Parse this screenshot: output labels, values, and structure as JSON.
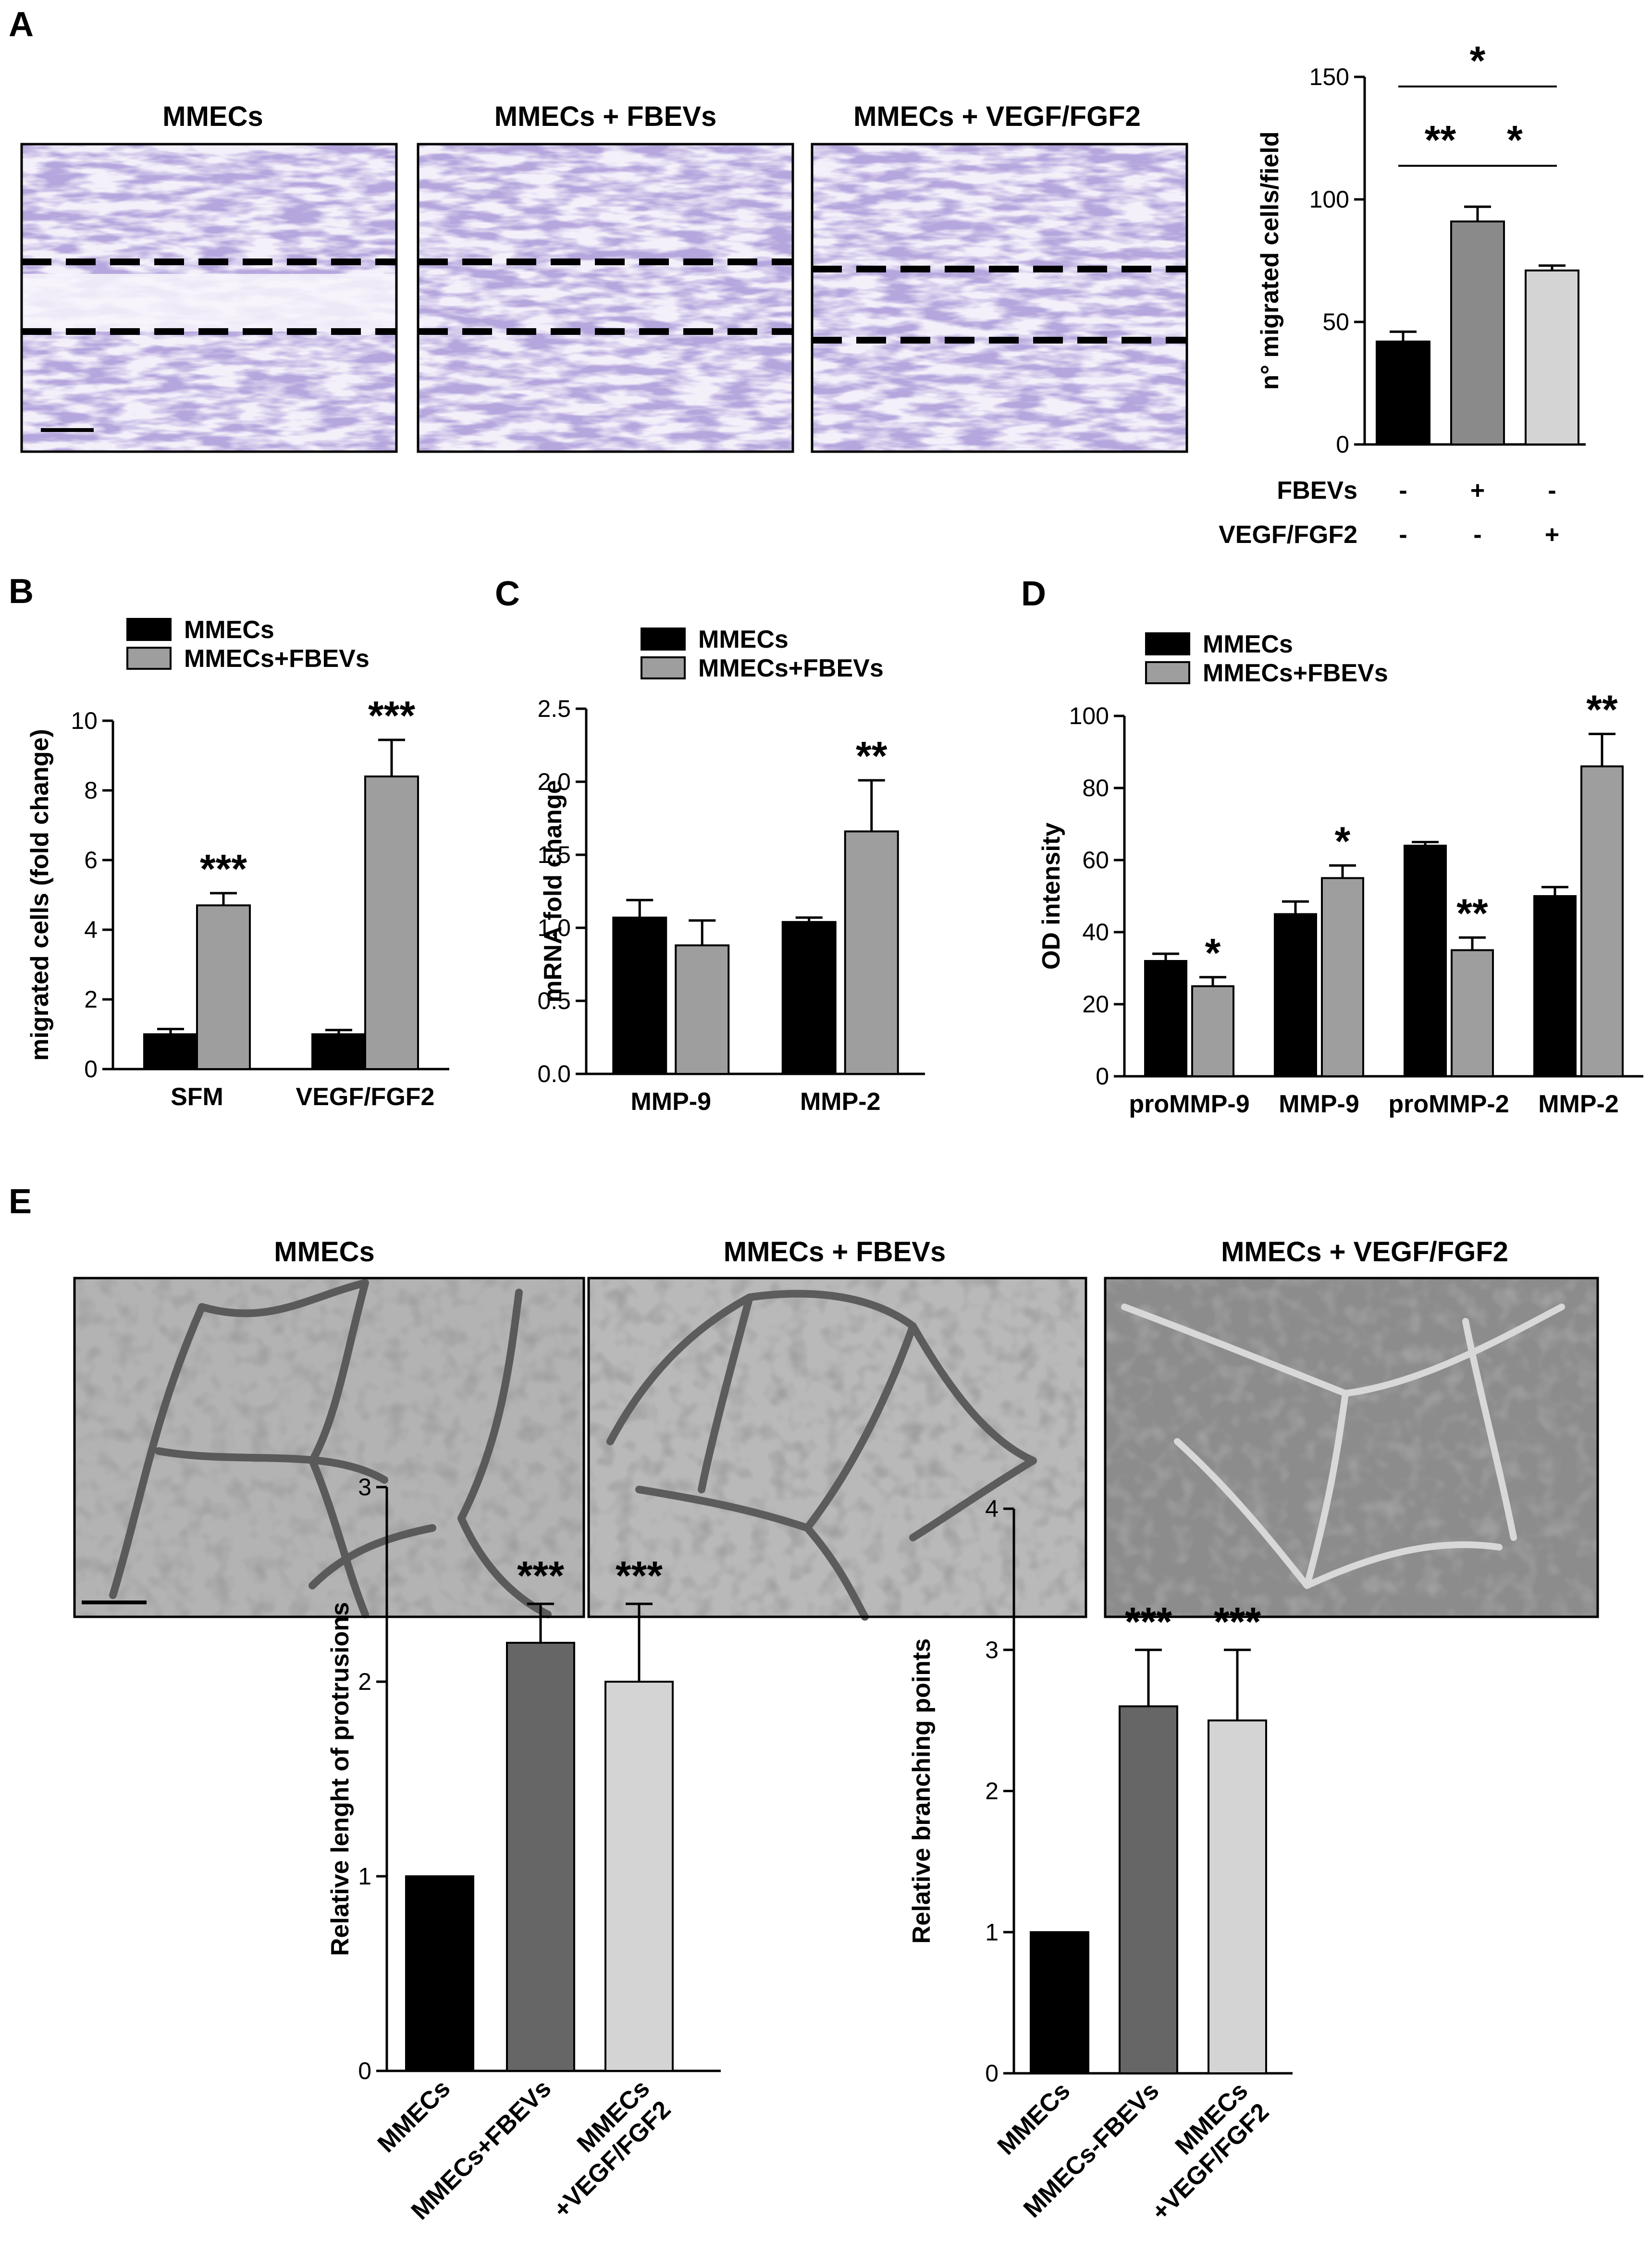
{
  "panels": {
    "A": "A",
    "B": "B",
    "C": "C",
    "D": "D",
    "E": "E"
  },
  "panel_a": {
    "image_titles": [
      "MMECs",
      "MMECs + FBEVs",
      "MMECs + VEGF/FGF2"
    ],
    "row_labels": [
      "FBEVs",
      "VEGF/FGF2"
    ],
    "row_values": [
      [
        "-",
        "+",
        "-"
      ],
      [
        "-",
        "-",
        "+"
      ]
    ]
  },
  "panel_e": {
    "image_titles": [
      "MMECs",
      "MMECs + FBEVs",
      "MMECs + VEGF/FGF2"
    ]
  },
  "colors": {
    "black": "#000000",
    "dark_gray": "#666666",
    "mid_gray": "#8a8a8a",
    "gray": "#9e9e9e",
    "light_gray": "#d4d4d4",
    "stain": "#8b7bbf",
    "phase": "#a6a6a6"
  },
  "chart_data": [
    {
      "id": "A",
      "type": "bar",
      "ylabel": "n° migrated cells/field",
      "ylim": [
        0,
        150
      ],
      "yticks": [
        0,
        50,
        100,
        150
      ],
      "categories": [
        "",
        "",
        ""
      ],
      "values": [
        42,
        91,
        71
      ],
      "errors": [
        4,
        6,
        2
      ],
      "bar_colors": [
        "#000000",
        "#8a8a8a",
        "#d4d4d4"
      ],
      "significance": [
        {
          "from": 0,
          "to": 2,
          "label": "*"
        },
        {
          "from": 0,
          "to": 1,
          "label": "**"
        },
        {
          "from": 1,
          "to": 2,
          "label": "*"
        }
      ]
    },
    {
      "id": "B",
      "type": "bar",
      "ylabel": "migrated cells (fold change)",
      "ylim": [
        0,
        10
      ],
      "yticks": [
        0,
        2,
        4,
        6,
        8,
        10
      ],
      "categories": [
        "SFM",
        "VEGF/FGF2"
      ],
      "series": [
        {
          "name": "MMECs",
          "color": "#000000",
          "values": [
            1.0,
            1.0
          ],
          "errors": [
            0.15,
            0.12
          ],
          "stars": [
            "",
            ""
          ]
        },
        {
          "name": "MMECs+FBEVs",
          "color": "#9e9e9e",
          "values": [
            4.7,
            8.4
          ],
          "errors": [
            0.35,
            1.05
          ],
          "stars": [
            "***",
            "***"
          ]
        }
      ]
    },
    {
      "id": "C",
      "type": "bar",
      "ylabel": "mRNA fold change",
      "ylim": [
        0,
        2.5
      ],
      "yticks": [
        "0.0",
        "0.5",
        "1.0",
        "1.5",
        "2.0",
        "2.5"
      ],
      "categories": [
        "MMP-9",
        "MMP-2"
      ],
      "series": [
        {
          "name": "MMECs",
          "color": "#000000",
          "values": [
            1.07,
            1.04
          ],
          "errors": [
            0.12,
            0.03
          ],
          "stars": [
            "",
            ""
          ]
        },
        {
          "name": "MMECs+FBEVs",
          "color": "#9e9e9e",
          "values": [
            0.88,
            1.66
          ],
          "errors": [
            0.17,
            0.35
          ],
          "stars": [
            "",
            "**"
          ]
        }
      ]
    },
    {
      "id": "D",
      "type": "bar",
      "ylabel": "OD intensity",
      "ylim": [
        0,
        100
      ],
      "yticks": [
        0,
        20,
        40,
        60,
        80,
        100
      ],
      "categories": [
        "proMMP-9",
        "MMP-9",
        "proMMP-2",
        "MMP-2"
      ],
      "series": [
        {
          "name": "MMECs",
          "color": "#000000",
          "values": [
            32,
            45,
            64,
            50
          ],
          "errors": [
            2,
            3.5,
            1,
            2.5
          ],
          "stars": [
            "",
            "",
            "",
            ""
          ]
        },
        {
          "name": "MMECs+FBEVs",
          "color": "#9e9e9e",
          "values": [
            25,
            55,
            35,
            86
          ],
          "errors": [
            2.5,
            3.5,
            3.5,
            9
          ],
          "stars": [
            "*",
            "*",
            "**",
            "**"
          ]
        }
      ]
    },
    {
      "id": "E1",
      "type": "bar",
      "ylabel": "Relative lenght of protrusions",
      "ylim": [
        0,
        3
      ],
      "yticks": [
        0,
        1,
        2,
        3
      ],
      "categories": [
        "MMECs",
        "MMECs+FBEVs",
        "MMECs\n+VEGF/FGF2"
      ],
      "values": [
        1.0,
        2.2,
        2.0
      ],
      "errors": [
        0,
        0.2,
        0.4
      ],
      "bar_colors": [
        "#000000",
        "#666666",
        "#d4d4d4"
      ],
      "stars": [
        "",
        "***",
        "***"
      ]
    },
    {
      "id": "E2",
      "type": "bar",
      "ylabel": "Relative branching points",
      "ylim": [
        0,
        4
      ],
      "yticks": [
        0,
        1,
        2,
        3,
        4
      ],
      "categories": [
        "MMECs",
        "MMECs-FBEVs",
        "MMECs\n+VEGF/FGF2"
      ],
      "values": [
        1.0,
        2.6,
        2.5
      ],
      "errors": [
        0,
        0.4,
        0.5
      ],
      "bar_colors": [
        "#000000",
        "#666666",
        "#d4d4d4"
      ],
      "stars": [
        "",
        "***",
        "***"
      ]
    }
  ]
}
